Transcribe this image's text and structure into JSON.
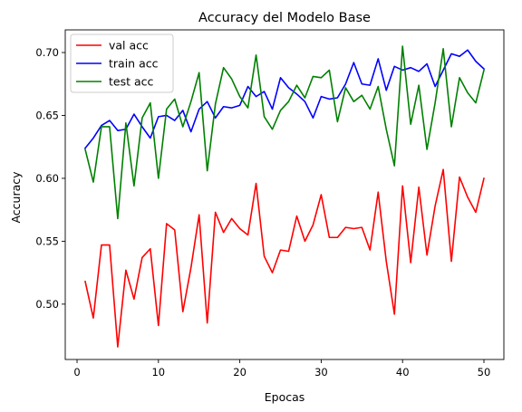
{
  "chart_data": {
    "type": "line",
    "title": "Accuracy del Modelo Base",
    "xlabel": "Epocas",
    "ylabel": "Accuracy",
    "xlim": [
      -1.45,
      52.45
    ],
    "ylim": [
      0.456,
      0.718
    ],
    "xticks": [
      0,
      10,
      20,
      30,
      40,
      50
    ],
    "yticks": [
      0.5,
      0.55,
      0.6,
      0.65,
      0.7
    ],
    "ytick_labels": [
      "0.50",
      "0.55",
      "0.60",
      "0.65",
      "0.70"
    ],
    "grid": false,
    "legend_position": "top-left",
    "x": [
      1,
      2,
      3,
      4,
      5,
      6,
      7,
      8,
      9,
      10,
      11,
      12,
      13,
      14,
      15,
      16,
      17,
      18,
      19,
      20,
      21,
      22,
      23,
      24,
      25,
      26,
      27,
      28,
      29,
      30,
      31,
      32,
      33,
      34,
      35,
      36,
      37,
      38,
      39,
      40,
      41,
      42,
      43,
      44,
      45,
      46,
      47,
      48,
      49,
      50
    ],
    "series": [
      {
        "name": "val acc",
        "color": "#ff0000",
        "values": [
          0.518,
          0.489,
          0.547,
          0.547,
          0.466,
          0.527,
          0.504,
          0.537,
          0.544,
          0.483,
          0.564,
          0.559,
          0.494,
          0.529,
          0.571,
          0.485,
          0.573,
          0.557,
          0.568,
          0.56,
          0.555,
          0.596,
          0.538,
          0.525,
          0.543,
          0.542,
          0.57,
          0.55,
          0.563,
          0.587,
          0.553,
          0.553,
          0.561,
          0.56,
          0.561,
          0.543,
          0.589,
          0.534,
          0.492,
          0.594,
          0.533,
          0.593,
          0.539,
          0.578,
          0.607,
          0.534,
          0.601,
          0.585,
          0.573,
          0.6
        ]
      },
      {
        "name": "train acc",
        "color": "#0000ff",
        "values": [
          0.624,
          0.632,
          0.642,
          0.646,
          0.638,
          0.639,
          0.651,
          0.641,
          0.632,
          0.649,
          0.65,
          0.646,
          0.654,
          0.637,
          0.655,
          0.661,
          0.648,
          0.657,
          0.656,
          0.658,
          0.673,
          0.665,
          0.669,
          0.655,
          0.68,
          0.672,
          0.667,
          0.661,
          0.648,
          0.665,
          0.663,
          0.664,
          0.675,
          0.692,
          0.675,
          0.674,
          0.695,
          0.67,
          0.689,
          0.686,
          0.688,
          0.685,
          0.691,
          0.673,
          0.686,
          0.699,
          0.697,
          0.702,
          0.693,
          0.687
        ]
      },
      {
        "name": "test acc",
        "color": "#008000",
        "values": [
          0.623,
          0.597,
          0.641,
          0.641,
          0.568,
          0.644,
          0.594,
          0.648,
          0.66,
          0.6,
          0.655,
          0.663,
          0.641,
          0.661,
          0.684,
          0.606,
          0.659,
          0.688,
          0.679,
          0.665,
          0.656,
          0.698,
          0.649,
          0.639,
          0.654,
          0.661,
          0.674,
          0.664,
          0.681,
          0.68,
          0.686,
          0.645,
          0.672,
          0.661,
          0.666,
          0.655,
          0.673,
          0.639,
          0.61,
          0.705,
          0.643,
          0.674,
          0.623,
          0.66,
          0.703,
          0.641,
          0.68,
          0.668,
          0.66,
          0.686
        ]
      }
    ]
  }
}
